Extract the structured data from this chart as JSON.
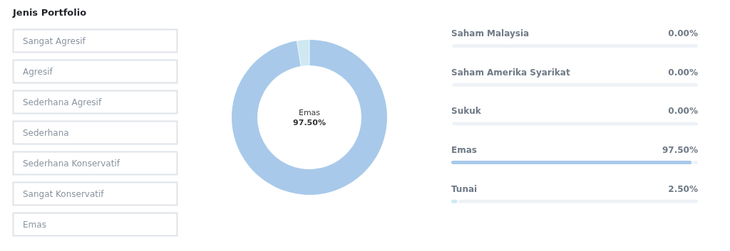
{
  "chart_data": [
    {
      "type": "other",
      "title": "Jenis Portfolio",
      "annotations": [
        "Sangat Agresif",
        "Agresif",
        "Sederhana Agresif",
        "Sederhana",
        "Sederhana Konservatif",
        "Sangat Konservatif",
        "Emas"
      ]
    },
    {
      "type": "donut",
      "categories": [
        null,
        null
      ],
      "values": [
        97.5,
        2.5
      ],
      "colors": [
        "#a8c9ea",
        "#cfe9f2"
      ],
      "annotations": [
        "Emas",
        "97.50%"
      ]
    },
    {
      "type": "bar",
      "orientation": "horizontal",
      "categories": [
        "Saham Malaysia",
        "Saham Amerika Syarikat",
        "Sukuk",
        "Emas",
        "Tunai"
      ],
      "values": [
        0,
        0,
        0,
        97.5,
        2.5
      ],
      "colors": [
        "#a8c9ea",
        "#a8c9ea",
        "#a8c9ea",
        "#a8c9ea",
        "#cfe9f2"
      ],
      "xlim": [
        0,
        100
      ],
      "tick_labels": false,
      "value_labels": [
        "0.00%",
        "0.00%",
        "0.00%",
        "97.50%",
        "2.50%"
      ]
    }
  ]
}
